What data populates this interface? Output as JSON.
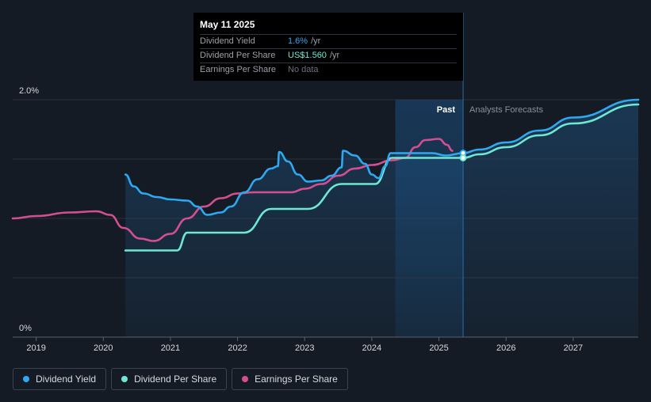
{
  "tooltip": {
    "date": "May 11 2025",
    "rows": [
      {
        "label": "Dividend Yield",
        "value": "1.6%",
        "unit": "/yr"
      },
      {
        "label": "Dividend Per Share",
        "value": "US$1.560",
        "unit": "/yr"
      },
      {
        "label": "Earnings Per Share",
        "value": "No data",
        "unit": ""
      }
    ]
  },
  "legend": [
    {
      "label": "Dividend Yield",
      "color": "#2ea8f0"
    },
    {
      "label": "Dividend Per Share",
      "color": "#6ee8d4"
    },
    {
      "label": "Earnings Per Share",
      "color": "#d44f91"
    }
  ],
  "chart_data": {
    "type": "line",
    "x_range": [
      2018.65,
      2027.97
    ],
    "y_range_percent": [
      0,
      2.0
    ],
    "y_tick_labels": [
      "0%",
      "2.0%"
    ],
    "x_tick_labels": [
      "2019",
      "2020",
      "2021",
      "2022",
      "2023",
      "2024",
      "2025",
      "2026",
      "2027"
    ],
    "x_ticks": [
      2019,
      2020,
      2021,
      2022,
      2023,
      2024,
      2025,
      2026,
      2027
    ],
    "region_labels": {
      "past": "Past",
      "forecast": "Analysts Forecasts"
    },
    "past_region": [
      2024.35,
      2025.36
    ],
    "cursor_x": 2025.36,
    "grid": true,
    "series": [
      {
        "key": "yield",
        "color": "#2ea8f0",
        "values": [
          [
            2020.33,
            1.37
          ],
          [
            2020.45,
            1.27
          ],
          [
            2020.6,
            1.21
          ],
          [
            2020.8,
            1.18
          ],
          [
            2021.0,
            1.16
          ],
          [
            2021.25,
            1.15
          ],
          [
            2021.4,
            1.1
          ],
          [
            2021.55,
            1.03
          ],
          [
            2021.75,
            1.05
          ],
          [
            2021.9,
            1.1
          ],
          [
            2022.1,
            1.22
          ],
          [
            2022.3,
            1.33
          ],
          [
            2022.5,
            1.42
          ],
          [
            2022.6,
            1.44
          ],
          [
            2022.62,
            1.56
          ],
          [
            2022.75,
            1.48
          ],
          [
            2022.9,
            1.37
          ],
          [
            2023.05,
            1.31
          ],
          [
            2023.25,
            1.32
          ],
          [
            2023.4,
            1.36
          ],
          [
            2023.55,
            1.43
          ],
          [
            2023.57,
            1.57
          ],
          [
            2023.75,
            1.53
          ],
          [
            2023.9,
            1.46
          ],
          [
            2024.0,
            1.37
          ],
          [
            2024.1,
            1.34
          ],
          [
            2024.2,
            1.44
          ],
          [
            2024.28,
            1.55
          ],
          [
            2024.6,
            1.55
          ],
          [
            2024.9,
            1.55
          ],
          [
            2025.1,
            1.53
          ],
          [
            2025.36,
            1.55
          ],
          [
            2025.6,
            1.58
          ],
          [
            2026.0,
            1.64
          ],
          [
            2026.5,
            1.74
          ],
          [
            2027.0,
            1.85
          ],
          [
            2027.97,
            2.0
          ]
        ]
      },
      {
        "key": "dps",
        "color": "#6ee8d4",
        "values": [
          [
            2020.33,
            0.73
          ],
          [
            2021.1,
            0.73
          ],
          [
            2021.25,
            0.88
          ],
          [
            2022.1,
            0.88
          ],
          [
            2022.5,
            1.08
          ],
          [
            2023.05,
            1.08
          ],
          [
            2023.55,
            1.29
          ],
          [
            2024.05,
            1.29
          ],
          [
            2024.3,
            1.51
          ],
          [
            2025.36,
            1.51
          ],
          [
            2025.6,
            1.54
          ],
          [
            2026.0,
            1.6
          ],
          [
            2026.5,
            1.7
          ],
          [
            2027.0,
            1.8
          ],
          [
            2027.97,
            1.96
          ]
        ]
      },
      {
        "key": "eps",
        "color": "#d44f91",
        "values": [
          [
            2018.65,
            1.0
          ],
          [
            2019.0,
            1.02
          ],
          [
            2019.5,
            1.05
          ],
          [
            2019.9,
            1.06
          ],
          [
            2020.1,
            1.03
          ],
          [
            2020.3,
            0.92
          ],
          [
            2020.55,
            0.83
          ],
          [
            2020.75,
            0.81
          ],
          [
            2021.0,
            0.87
          ],
          [
            2021.25,
            1.0
          ],
          [
            2021.5,
            1.1
          ],
          [
            2021.75,
            1.17
          ],
          [
            2022.0,
            1.21
          ],
          [
            2022.25,
            1.22
          ],
          [
            2022.5,
            1.22
          ],
          [
            2022.8,
            1.22
          ],
          [
            2023.0,
            1.25
          ],
          [
            2023.25,
            1.29
          ],
          [
            2023.5,
            1.36
          ],
          [
            2023.75,
            1.42
          ],
          [
            2024.0,
            1.45
          ],
          [
            2024.3,
            1.49
          ],
          [
            2024.5,
            1.51
          ],
          [
            2024.65,
            1.6
          ],
          [
            2024.8,
            1.66
          ],
          [
            2025.0,
            1.67
          ],
          [
            2025.12,
            1.62
          ],
          [
            2025.2,
            1.57
          ]
        ]
      }
    ]
  }
}
